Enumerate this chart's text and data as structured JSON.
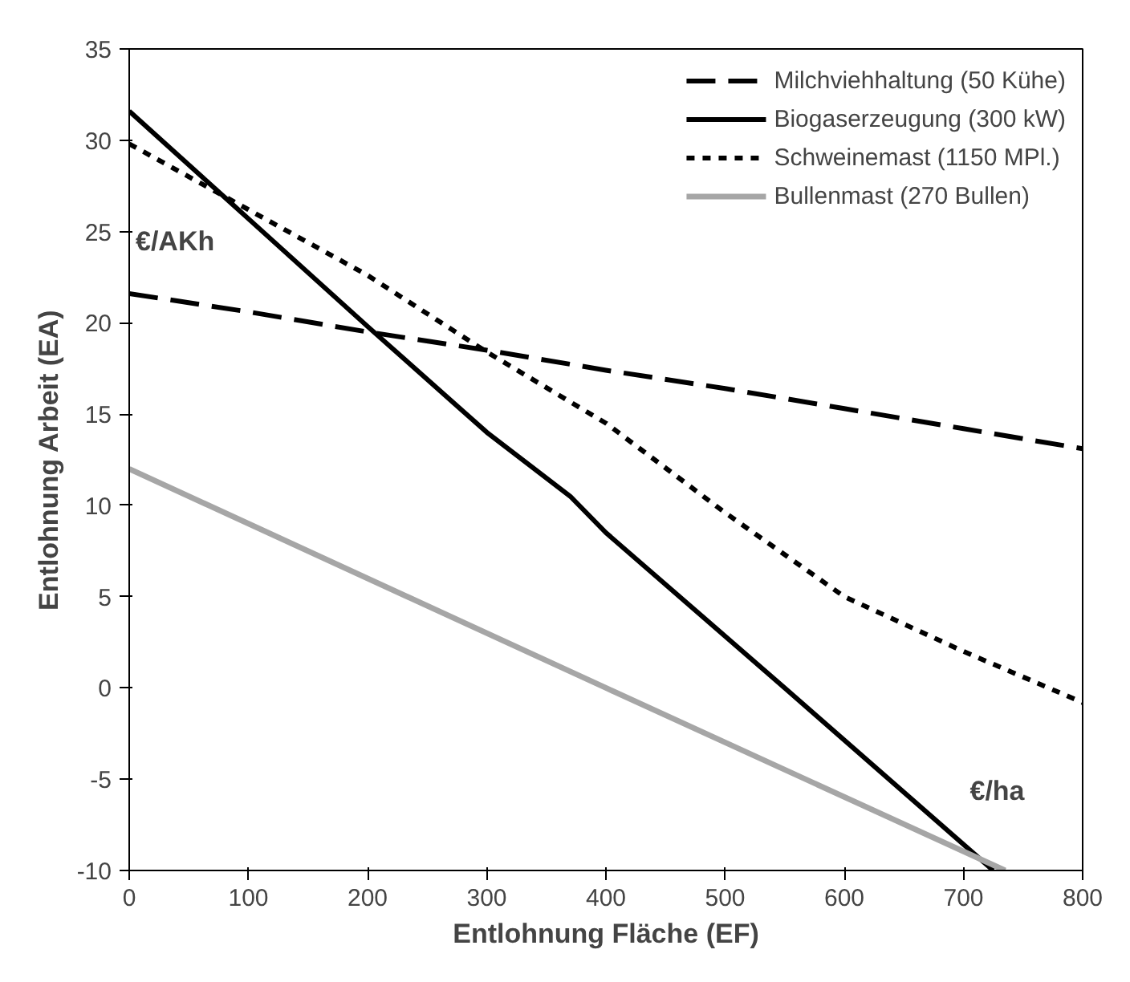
{
  "chart_data": {
    "type": "line",
    "xlabel": "Entlohnung Fläche (EF)",
    "ylabel": "Entlohnung Arbeit (EA)",
    "annotations": [
      "€/AKh",
      "€/ha"
    ],
    "xlim": [
      0,
      800
    ],
    "xticks": [
      0,
      100,
      200,
      300,
      400,
      500,
      600,
      700,
      800
    ],
    "ylim": [
      -10,
      35
    ],
    "yticks": [
      -10,
      -5,
      0,
      5,
      10,
      15,
      20,
      25,
      30,
      35
    ],
    "grid": false,
    "legend": "top right",
    "marker": "none",
    "series": [
      {
        "name": "Milchviehhaltung (50 Kühe)",
        "color": "#000000",
        "line_style": "dashed",
        "x": [
          0,
          100,
          200,
          300,
          400,
          500,
          600,
          700,
          800
        ],
        "values": [
          21.6,
          20.6,
          19.5,
          18.5,
          17.4,
          16.4,
          15.3,
          14.2,
          13.1
        ]
      },
      {
        "name": "Biogaserzeugung (300 kW)",
        "color": "#000000",
        "line_style": "solid",
        "x": [
          0,
          100,
          200,
          300,
          370,
          400,
          550,
          725
        ],
        "values": [
          31.6,
          25.7,
          19.8,
          14,
          10.5,
          8.5,
          0,
          -10
        ]
      },
      {
        "name": "Schweinemast (1150 MPl.)",
        "color": "#000000",
        "line_style": "dotted",
        "x": [
          0,
          100,
          200,
          300,
          400,
          500,
          600,
          700,
          800
        ],
        "values": [
          29.8,
          26.2,
          22.6,
          18.4,
          14.5,
          9.6,
          5,
          2,
          -0.8
        ]
      },
      {
        "name": "Bullenmast (270 Bullen)",
        "color": "#a6a6a6",
        "line_style": "solid",
        "x": [
          0,
          400,
          735
        ],
        "values": [
          12,
          0,
          -10
        ]
      }
    ]
  }
}
